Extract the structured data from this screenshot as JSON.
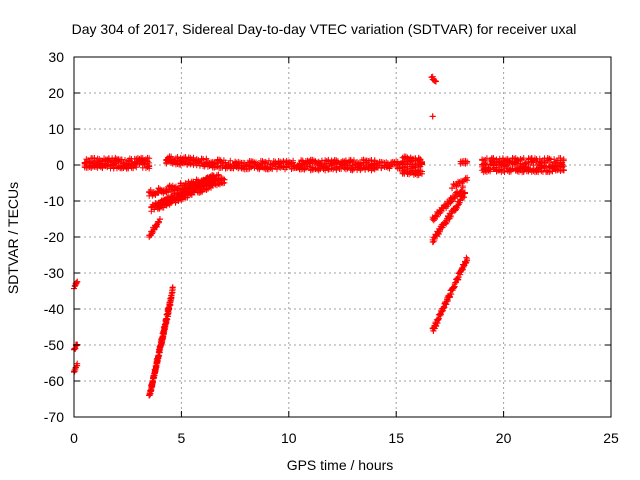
{
  "chart_data": {
    "type": "scatter",
    "title": "Day 304 of 2017, Sidereal Day-to-day VTEC variation (SDTVAR) for receiver uxal",
    "xlabel": "GPS time / hours",
    "ylabel": "SDTVAR / TECUs",
    "xlim": [
      0,
      25
    ],
    "ylim": [
      -70,
      30
    ],
    "xticks": [
      0,
      5,
      10,
      15,
      20,
      25
    ],
    "yticks": [
      -70,
      -60,
      -50,
      -40,
      -30,
      -20,
      -10,
      0,
      10,
      20,
      30
    ],
    "grid": true,
    "marker": "+",
    "color": "#ff0000",
    "segments": [
      {
        "name": "main-band-1",
        "x": [
          0.5,
          3.5
        ],
        "y": [
          0.5,
          0.5
        ],
        "spread": 1.5
      },
      {
        "name": "main-band-2",
        "x": [
          4.3,
          7.5
        ],
        "y": [
          1.5,
          0.0
        ],
        "spread": 1.2
      },
      {
        "name": "main-band-3",
        "x": [
          7.5,
          10.5
        ],
        "y": [
          0.0,
          0.0
        ],
        "spread": 1.2
      },
      {
        "name": "main-band-4",
        "x": [
          10.5,
          14.0
        ],
        "y": [
          0.0,
          0.0
        ],
        "spread": 1.5
      },
      {
        "name": "main-band-5",
        "x": [
          14.0,
          15.3
        ],
        "y": [
          0.0,
          0.0
        ],
        "spread": 1.0
      },
      {
        "name": "main-band-6",
        "x": [
          15.3,
          16.2
        ],
        "y": [
          0.0,
          -0.5
        ],
        "spread": 2.5
      },
      {
        "name": "main-band-7",
        "x": [
          18.0,
          18.3
        ],
        "y": [
          0.7,
          0.7
        ],
        "spread": 0.5
      },
      {
        "name": "main-band-8",
        "x": [
          19.0,
          22.8
        ],
        "y": [
          0.0,
          0.0
        ],
        "spread": 2.0
      },
      {
        "name": "rising-arc-1",
        "x": [
          3.5,
          6.8
        ],
        "y": [
          -8.0,
          -3.5
        ],
        "spread": 1.0
      },
      {
        "name": "rising-arc-2",
        "x": [
          3.6,
          6.5
        ],
        "y": [
          -12.0,
          -3.5
        ],
        "spread": 1.0
      },
      {
        "name": "rising-arc-3",
        "x": [
          3.9,
          7.0
        ],
        "y": [
          -11.5,
          -4.0
        ],
        "spread": 1.0
      },
      {
        "name": "rising-arc-4",
        "x": [
          3.5,
          4.0
        ],
        "y": [
          -19.5,
          -15.5
        ],
        "spread": 0.8
      },
      {
        "name": "steep-arc-1",
        "x": [
          3.5,
          4.6
        ],
        "y": [
          -64.5,
          -34.5
        ],
        "spread": 0.8
      },
      {
        "name": "steep-arc-2",
        "x": [
          3.6,
          4.5
        ],
        "y": [
          -62.0,
          -38.0
        ],
        "spread": 0.6
      },
      {
        "name": "left-edge-1",
        "x": [
          0.0,
          0.15
        ],
        "y": [
          -34.0,
          -32.5
        ],
        "spread": 0.4
      },
      {
        "name": "left-edge-2",
        "x": [
          0.0,
          0.15
        ],
        "y": [
          -51.5,
          -49.5
        ],
        "spread": 0.4
      },
      {
        "name": "left-edge-3",
        "x": [
          0.0,
          0.15
        ],
        "y": [
          -57.5,
          -55.5
        ],
        "spread": 0.4
      },
      {
        "name": "spike-top",
        "x": [
          16.65,
          16.85
        ],
        "y": [
          24.5,
          23.0
        ],
        "spread": 0.5
      },
      {
        "name": "spike-mid",
        "x": [
          16.7,
          16.7
        ],
        "y": [
          13.5,
          13.5
        ],
        "spread": 0.0
      },
      {
        "name": "descending-arc-1",
        "x": [
          16.7,
          18.3
        ],
        "y": [
          -46.0,
          -26.0
        ],
        "spread": 0.8
      },
      {
        "name": "descending-arc-2",
        "x": [
          16.7,
          18.2
        ],
        "y": [
          -21.0,
          -8.0
        ],
        "spread": 0.8
      },
      {
        "name": "descending-arc-3",
        "x": [
          16.7,
          18.1
        ],
        "y": [
          -15.0,
          -6.5
        ],
        "spread": 0.8
      },
      {
        "name": "descending-arc-4",
        "x": [
          17.6,
          18.3
        ],
        "y": [
          -6.0,
          -4.0
        ],
        "spread": 0.6
      }
    ]
  }
}
